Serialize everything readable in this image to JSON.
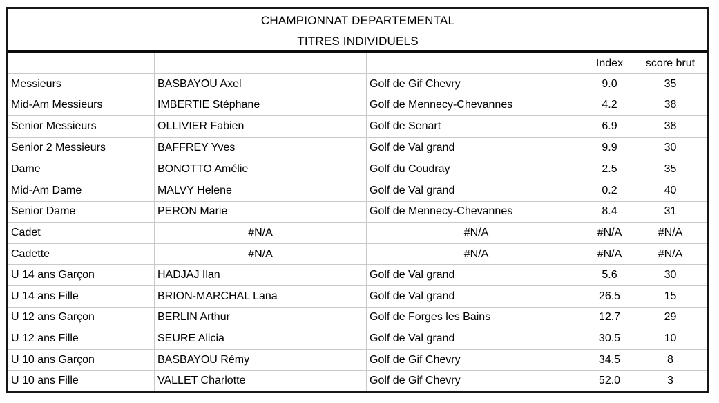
{
  "titles": {
    "main": "CHAMPIONNAT DEPARTEMENTAL",
    "sub": "TITRES INDIVIDUELS"
  },
  "table": {
    "header": {
      "category": "",
      "player": "",
      "club": "",
      "index": "Index",
      "score_brut": "score brut"
    },
    "rows": [
      {
        "category": "Messieurs",
        "player": "BASBAYOU Axel",
        "club": "Golf de Gif Chevry",
        "index": "9.0",
        "score_brut": "35"
      },
      {
        "category": "Mid-Am Messieurs",
        "player": "IMBERTIE Stéphane",
        "club": "Golf de Mennecy-Chevannes",
        "index": "4.2",
        "score_brut": "38"
      },
      {
        "category": "Senior Messieurs",
        "player": "OLLIVIER Fabien",
        "club": "Golf de Senart",
        "index": "6.9",
        "score_brut": "38"
      },
      {
        "category": "Senior 2 Messieurs",
        "player": "BAFFREY Yves",
        "club": "Golf de Val grand",
        "index": "9.9",
        "score_brut": "30"
      },
      {
        "category": "Dame",
        "player": "BONOTTO Amélie",
        "club": "Golf du Coudray",
        "index": "2.5",
        "score_brut": "35",
        "caret_after_player": true
      },
      {
        "category": "Mid-Am Dame",
        "player": "MALVY Helene",
        "club": "Golf de Val grand",
        "index": "0.2",
        "score_brut": "40"
      },
      {
        "category": "Senior Dame",
        "player": "PERON Marie",
        "club": "Golf de Mennecy-Chevannes",
        "index": "8.4",
        "score_brut": "31"
      },
      {
        "category": "Cadet",
        "player": "#N/A",
        "club": "#N/A",
        "index": "#N/A",
        "score_brut": "#N/A"
      },
      {
        "category": "Cadette",
        "player": "#N/A",
        "club": "#N/A",
        "index": "#N/A",
        "score_brut": "#N/A"
      },
      {
        "category": "U 14 ans Garçon",
        "player": "HADJAJ Ilan",
        "club": "Golf de Val grand",
        "index": "5.6",
        "score_brut": "30"
      },
      {
        "category": "U 14 ans Fille",
        "player": "BRION-MARCHAL Lana",
        "club": "Golf de Val grand",
        "index": "26.5",
        "score_brut": "15"
      },
      {
        "category": "U 12 ans Garçon",
        "player": "BERLIN Arthur",
        "club": "Golf de Forges les Bains",
        "index": "12.7",
        "score_brut": "29"
      },
      {
        "category": "U 12 ans Fille",
        "player": "SEURE Alicia",
        "club": "Golf de Val grand",
        "index": "30.5",
        "score_brut": "10"
      },
      {
        "category": "U 10 ans Garçon",
        "player": "BASBAYOU Rémy",
        "club": "Golf de Gif Chevry",
        "index": "34.5",
        "score_brut": "8"
      },
      {
        "category": "U 10 ans Fille",
        "player": "VALLET Charlotte",
        "club": "Golf de Gif Chevry",
        "index": "52.0",
        "score_brut": "3"
      }
    ],
    "na_value": "#N/A"
  },
  "editing": {
    "caret_visible": true,
    "active_cell_text": "BONOTTO Amélie"
  },
  "colors": {
    "outer_border": "#161616",
    "thick_divider": "#0b0b0b",
    "grid_line": "#c9c9c9",
    "background": "#ffffff",
    "text": "#000000"
  }
}
